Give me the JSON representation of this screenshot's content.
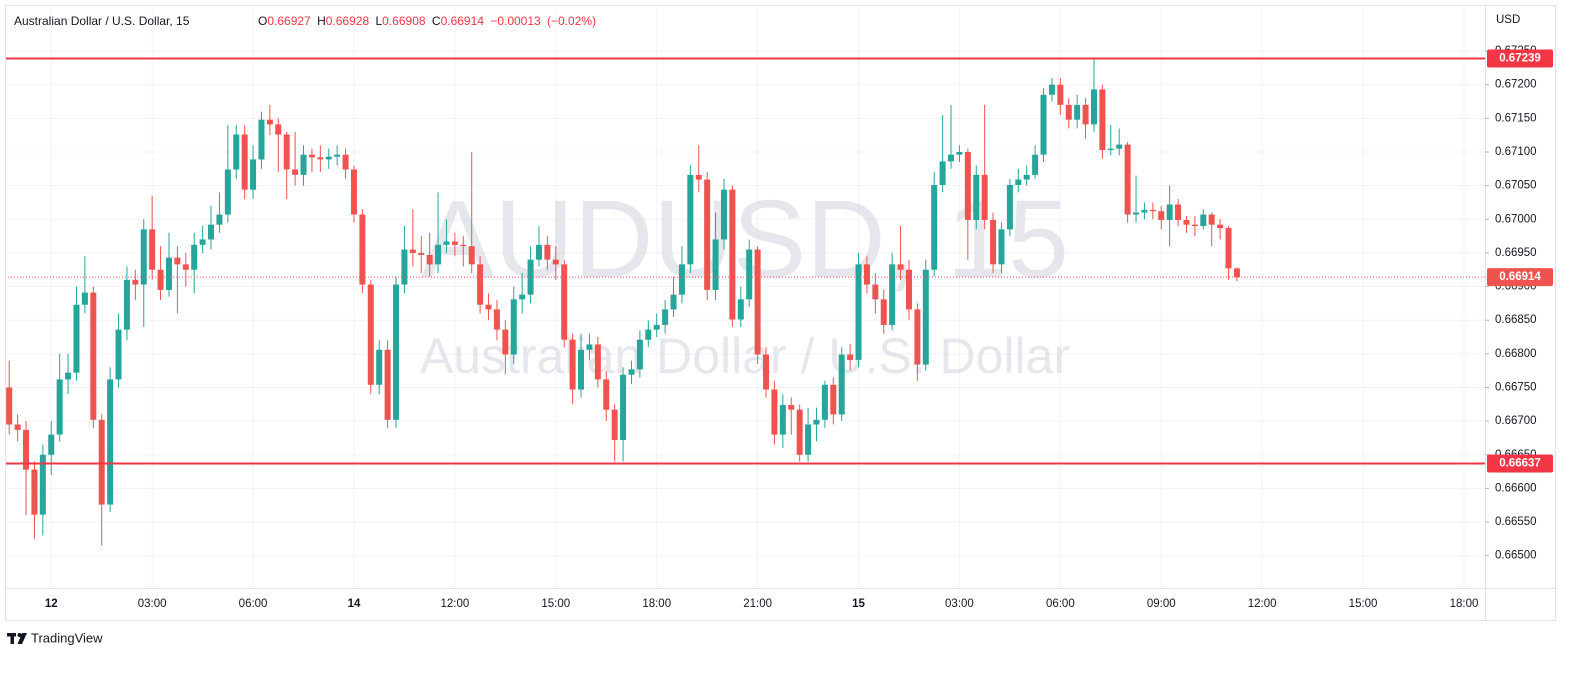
{
  "chart_data": {
    "type": "candlestick",
    "title": "Australian Dollar / U.S. Dollar, 15",
    "watermark": "AUDUSD, 15",
    "watermark_subtitle": "Australian Dollar / U.S. Dollar",
    "currency": "USD",
    "legend": {
      "o_label": "O",
      "h_label": "H",
      "l_label": "L",
      "c_label": "C",
      "change": "−0.00013",
      "change_pct": "(−0.02%)"
    },
    "up_color": "#26a69a",
    "down_color": "#ef5350",
    "grid": true,
    "ylim": [
      0.66452,
      0.67314
    ],
    "yticks": [
      {
        "value": 0.665,
        "label": "0.66500"
      },
      {
        "value": 0.6655,
        "label": "0.66550"
      },
      {
        "value": 0.666,
        "label": "0.66600"
      },
      {
        "value": 0.6665,
        "label": "0.66650"
      },
      {
        "value": 0.667,
        "label": "0.66700"
      },
      {
        "value": 0.6675,
        "label": "0.66750"
      },
      {
        "value": 0.668,
        "label": "0.66800"
      },
      {
        "value": 0.6685,
        "label": "0.66850"
      },
      {
        "value": 0.669,
        "label": "0.66900"
      },
      {
        "value": 0.6695,
        "label": "0.66950"
      },
      {
        "value": 0.67,
        "label": "0.67000"
      },
      {
        "value": 0.6705,
        "label": "0.67050"
      },
      {
        "value": 0.671,
        "label": "0.67100"
      },
      {
        "value": 0.6715,
        "label": "0.67150"
      },
      {
        "value": 0.672,
        "label": "0.67200"
      },
      {
        "value": 0.6725,
        "label": "0.67250"
      }
    ],
    "hlines": [
      {
        "value": 0.67239,
        "color": "#f23645"
      },
      {
        "value": 0.66637,
        "color": "#f23645"
      }
    ],
    "categories": [
      null,
      null,
      null,
      null,
      null,
      "12",
      null,
      null,
      null,
      null,
      null,
      null,
      null,
      null,
      null,
      null,
      null,
      "03:00",
      null,
      null,
      null,
      null,
      null,
      null,
      null,
      null,
      null,
      null,
      null,
      "06:00",
      null,
      null,
      null,
      null,
      null,
      null,
      null,
      null,
      null,
      null,
      null,
      "14",
      null,
      null,
      null,
      null,
      null,
      null,
      null,
      null,
      null,
      null,
      null,
      "12:00",
      null,
      null,
      null,
      null,
      null,
      null,
      null,
      null,
      null,
      null,
      null,
      "15:00",
      null,
      null,
      null,
      null,
      null,
      null,
      null,
      null,
      null,
      null,
      null,
      "18:00",
      null,
      null,
      null,
      null,
      null,
      null,
      null,
      null,
      null,
      null,
      null,
      "21:00",
      null,
      null,
      null,
      null,
      null,
      null,
      null,
      null,
      null,
      null,
      null,
      "15",
      null,
      null,
      null,
      null,
      null,
      null,
      null,
      null,
      null,
      null,
      null,
      "03:00",
      null,
      null,
      null,
      null,
      null,
      null,
      null,
      null,
      null,
      null,
      null,
      "06:00",
      null,
      null,
      null,
      null,
      null,
      null,
      null,
      null,
      null,
      null,
      null,
      "09:00",
      null,
      null,
      null,
      null,
      null,
      null,
      null,
      null,
      null,
      null,
      null,
      "12:00",
      null,
      null,
      null,
      null,
      null,
      null,
      null,
      null,
      null,
      null,
      null,
      "15:00",
      null,
      null,
      null,
      null,
      null,
      null,
      null,
      null,
      null,
      null,
      null,
      "18:00",
      null,
      null
    ],
    "open": [
      0.6675,
      0.66695,
      0.66687,
      0.66628,
      0.66561,
      0.6665,
      0.6668,
      0.66762,
      0.66772,
      0.66873,
      0.66891,
      0.66702,
      0.66576,
      0.66762,
      0.66836,
      0.6691,
      0.66903,
      0.66985,
      0.66925,
      0.66895,
      0.66943,
      0.66933,
      0.66925,
      0.66962,
      0.6697,
      0.66992,
      0.67007,
      0.67074,
      0.67126,
      0.67044,
      0.67089,
      0.67148,
      0.67141,
      0.67126,
      0.67074,
      0.67066,
      0.67096,
      0.67092,
      0.67089,
      0.67093,
      0.67096,
      0.67074,
      0.67007,
      0.66903,
      0.66754,
      0.66806,
      0.66702,
      0.66903,
      0.66955,
      0.6695,
      0.66947,
      0.66933,
      0.66962,
      0.66967,
      0.66962,
      0.6696,
      0.66933,
      0.66873,
      0.66866,
      0.66836,
      0.66799,
      0.66881,
      0.66888,
      0.6694,
      0.66962,
      0.6694,
      0.66933,
      0.66821,
      0.66747,
      0.66806,
      0.66814,
      0.66762,
      0.66717,
      0.66672,
      0.66769,
      0.66777,
      0.66821,
      0.66836,
      0.66843,
      0.66866,
      0.66888,
      0.66933,
      0.67066,
      0.67059,
      0.66895,
      0.6697,
      0.67044,
      0.66851,
      0.66881,
      0.66955,
      0.66799,
      0.66747,
      0.6668,
      0.66724,
      0.66717,
      0.6665,
      0.66695,
      0.66702,
      0.66754,
      0.6671,
      0.66799,
      0.66791,
      0.66933,
      0.66903,
      0.66881,
      0.66843,
      0.66933,
      0.66925,
      0.66866,
      0.66784,
      0.66925,
      0.67051,
      0.67086,
      0.67096,
      0.671,
      0.66999,
      0.67066,
      0.66999,
      0.66933,
      0.66985,
      0.67051,
      0.67059,
      0.67066,
      0.67096,
      0.67185,
      0.672,
      0.6717,
      0.67148,
      0.6717,
      0.67141,
      0.67193,
      0.67103,
      0.67105,
      0.67111,
      0.67007,
      0.6701,
      0.67014,
      0.67012,
      0.66999,
      0.67022,
      0.66999,
      0.66992,
      0.6699,
      0.67007,
      0.66992,
      0.66987,
      0.66927,
      null,
      null,
      null,
      null,
      null,
      null,
      null,
      null,
      null,
      null,
      null,
      null,
      null,
      null,
      null,
      null,
      null,
      null,
      null,
      null,
      null,
      null,
      null,
      null,
      null,
      null,
      null,
      null,
      null
    ],
    "high": [
      0.6679,
      0.6671,
      0.667,
      0.6664,
      0.66665,
      0.667,
      0.668,
      0.668,
      0.669,
      0.66945,
      0.669,
      0.6671,
      0.6678,
      0.6686,
      0.6693,
      0.66925,
      0.67,
      0.67035,
      0.6696,
      0.6698,
      0.6696,
      0.6695,
      0.6698,
      0.6699,
      0.6702,
      0.6704,
      0.6714,
      0.6714,
      0.6714,
      0.6711,
      0.6716,
      0.6717,
      0.6715,
      0.6713,
      0.6713,
      0.6711,
      0.67105,
      0.6711,
      0.67105,
      0.6711,
      0.67105,
      0.6708,
      0.67015,
      0.6691,
      0.6682,
      0.6682,
      0.66915,
      0.6699,
      0.67015,
      0.66975,
      0.6698,
      0.6704,
      0.67,
      0.6698,
      0.66975,
      0.671,
      0.66945,
      0.6689,
      0.6688,
      0.6685,
      0.669,
      0.6692,
      0.6696,
      0.6699,
      0.66975,
      0.6696,
      0.6694,
      0.6683,
      0.6683,
      0.6683,
      0.66825,
      0.66775,
      0.66725,
      0.6678,
      0.6679,
      0.66835,
      0.6685,
      0.6686,
      0.6688,
      0.66915,
      0.6696,
      0.6708,
      0.6711,
      0.6707,
      0.6701,
      0.6706,
      0.6705,
      0.669,
      0.6697,
      0.6696,
      0.6681,
      0.6676,
      0.6674,
      0.66735,
      0.66725,
      0.6672,
      0.6672,
      0.6676,
      0.66765,
      0.6681,
      0.66815,
      0.6695,
      0.66945,
      0.6692,
      0.66895,
      0.6695,
      0.6699,
      0.6694,
      0.66875,
      0.6694,
      0.6707,
      0.67155,
      0.6717,
      0.6711,
      0.67105,
      0.6708,
      0.6717,
      0.6701,
      0.66995,
      0.6706,
      0.67075,
      0.6708,
      0.6711,
      0.67195,
      0.6721,
      0.6721,
      0.6718,
      0.67185,
      0.6718,
      0.67239,
      0.672,
      0.6714,
      0.67135,
      0.67115,
      0.67065,
      0.67025,
      0.67025,
      0.6702,
      0.6705,
      0.6703,
      0.67005,
      0.67005,
      0.67015,
      0.6701,
      0.67,
      0.6699,
      0.66928,
      null,
      null,
      null,
      null,
      null,
      null,
      null,
      null,
      null,
      null,
      null,
      null,
      null,
      null,
      null,
      null,
      null,
      null,
      null,
      null,
      null,
      null,
      null,
      null,
      null,
      null,
      null,
      null,
      null
    ],
    "low": [
      0.6668,
      0.6667,
      0.6656,
      0.66525,
      0.6653,
      0.6662,
      0.6667,
      0.6674,
      0.6676,
      0.6686,
      0.6669,
      0.66515,
      0.66565,
      0.6675,
      0.6682,
      0.6688,
      0.6684,
      0.6691,
      0.6688,
      0.66885,
      0.6686,
      0.669,
      0.6689,
      0.6695,
      0.66955,
      0.6698,
      0.66995,
      0.6706,
      0.6703,
      0.6703,
      0.67075,
      0.67125,
      0.6707,
      0.6703,
      0.6705,
      0.6705,
      0.6707,
      0.6707,
      0.67075,
      0.6708,
      0.6706,
      0.66995,
      0.6689,
      0.6674,
      0.6674,
      0.6669,
      0.6669,
      0.6689,
      0.6693,
      0.6692,
      0.66915,
      0.6692,
      0.6695,
      0.66945,
      0.6693,
      0.6692,
      0.6686,
      0.6685,
      0.6682,
      0.6677,
      0.66785,
      0.6686,
      0.66875,
      0.6693,
      0.66925,
      0.6691,
      0.6681,
      0.66725,
      0.66735,
      0.6679,
      0.6675,
      0.667,
      0.6664,
      0.6664,
      0.66755,
      0.66765,
      0.6681,
      0.66825,
      0.6683,
      0.66855,
      0.66875,
      0.6692,
      0.6704,
      0.6688,
      0.6688,
      0.66955,
      0.6684,
      0.6684,
      0.6687,
      0.66785,
      0.66735,
      0.66665,
      0.6666,
      0.6668,
      0.6664,
      0.6664,
      0.6667,
      0.6669,
      0.66695,
      0.667,
      0.66775,
      0.6678,
      0.6689,
      0.6686,
      0.6683,
      0.66835,
      0.6691,
      0.6685,
      0.6676,
      0.66775,
      0.66915,
      0.6704,
      0.67075,
      0.67085,
      0.6694,
      0.66985,
      0.66985,
      0.6692,
      0.6692,
      0.66975,
      0.6704,
      0.6705,
      0.6706,
      0.67085,
      0.67175,
      0.67155,
      0.67135,
      0.67135,
      0.6712,
      0.6713,
      0.6709,
      0.67095,
      0.67095,
      0.66995,
      0.66995,
      0.67,
      0.67,
      0.66985,
      0.6696,
      0.6699,
      0.6698,
      0.66975,
      0.66985,
      0.6696,
      0.6697,
      0.6691,
      0.66908,
      null,
      null,
      null,
      null,
      null,
      null,
      null,
      null,
      null,
      null,
      null,
      null,
      null,
      null,
      null,
      null,
      null,
      null,
      null,
      null,
      null,
      null,
      null,
      null,
      null,
      null,
      null,
      null,
      null
    ],
    "close": [
      0.66695,
      0.66687,
      0.66628,
      0.66561,
      0.6665,
      0.6668,
      0.66762,
      0.66772,
      0.66873,
      0.66891,
      0.66702,
      0.66576,
      0.66762,
      0.66836,
      0.6691,
      0.66903,
      0.66985,
      0.66925,
      0.66895,
      0.66943,
      0.66933,
      0.66925,
      0.66962,
      0.6697,
      0.66992,
      0.67007,
      0.67074,
      0.67126,
      0.67044,
      0.67089,
      0.67148,
      0.67141,
      0.67126,
      0.67074,
      0.67066,
      0.67096,
      0.67092,
      0.67089,
      0.67093,
      0.67096,
      0.67074,
      0.67007,
      0.66903,
      0.66754,
      0.66806,
      0.66702,
      0.66903,
      0.66955,
      0.6695,
      0.66947,
      0.66933,
      0.66962,
      0.66967,
      0.66962,
      0.6696,
      0.66933,
      0.66873,
      0.66866,
      0.66836,
      0.66799,
      0.66881,
      0.66888,
      0.6694,
      0.66962,
      0.6694,
      0.66933,
      0.66821,
      0.66747,
      0.66806,
      0.66814,
      0.66762,
      0.66717,
      0.66672,
      0.66769,
      0.66777,
      0.66821,
      0.66836,
      0.66843,
      0.66866,
      0.66888,
      0.66933,
      0.67066,
      0.67059,
      0.66895,
      0.6697,
      0.67044,
      0.66851,
      0.66881,
      0.66955,
      0.66799,
      0.66747,
      0.6668,
      0.66724,
      0.66717,
      0.6665,
      0.66695,
      0.66702,
      0.66754,
      0.6671,
      0.66799,
      0.66791,
      0.66933,
      0.66903,
      0.66881,
      0.66843,
      0.66933,
      0.66925,
      0.66866,
      0.66784,
      0.66925,
      0.67051,
      0.67086,
      0.67096,
      0.671,
      0.66999,
      0.67066,
      0.66999,
      0.66933,
      0.66985,
      0.67051,
      0.67059,
      0.67066,
      0.67096,
      0.67185,
      0.672,
      0.6717,
      0.67148,
      0.6717,
      0.67141,
      0.67193,
      0.67103,
      0.67105,
      0.67111,
      0.67007,
      0.6701,
      0.67014,
      0.67012,
      0.66999,
      0.67022,
      0.66999,
      0.66992,
      0.6699,
      0.67007,
      0.66992,
      0.66987,
      0.66927,
      0.66914,
      null,
      null,
      null,
      null,
      null,
      null,
      null,
      null,
      null,
      null,
      null,
      null,
      null,
      null,
      null,
      null,
      null,
      null,
      null,
      null,
      null,
      null,
      null,
      null,
      null,
      null,
      null,
      null,
      null
    ]
  },
  "footer": {
    "brand": "TradingView"
  }
}
